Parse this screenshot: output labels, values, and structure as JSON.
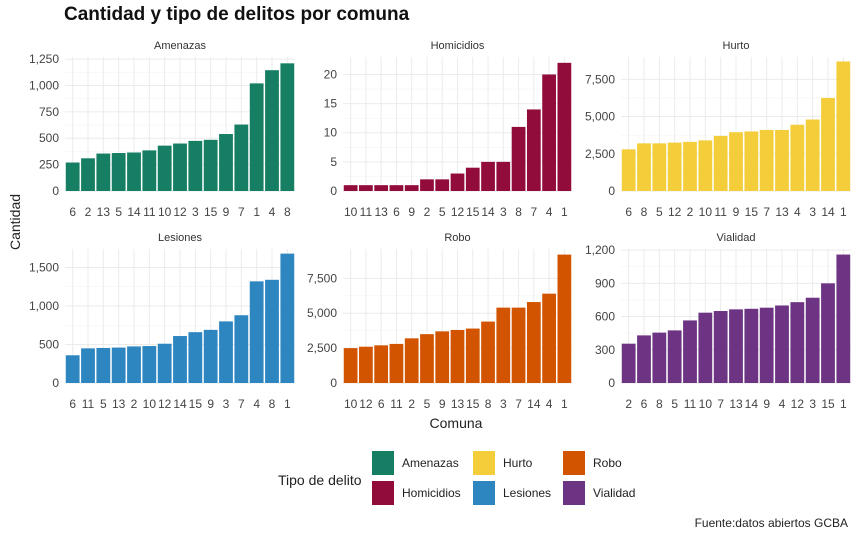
{
  "title": "Cantidad y tipo de delitos por comuna",
  "source": "Fuente:datos abiertos GCBA",
  "xlabel": "Comuna",
  "ylabel": "Cantidad",
  "legend": {
    "title": "Tipo de delito",
    "items": [
      {
        "label": "Amenazas",
        "color": "#157e63"
      },
      {
        "label": "Homicidios",
        "color": "#920c3b"
      },
      {
        "label": "Hurto",
        "color": "#f4cd3a"
      },
      {
        "label": "Lesiones",
        "color": "#2e86c1"
      },
      {
        "label": "Robo",
        "color": "#d35400"
      },
      {
        "label": "Vialidad",
        "color": "#6c3483"
      }
    ]
  },
  "chart_data": [
    {
      "type": "bar",
      "title": "Amenazas",
      "color": "#157e63",
      "categories": [
        "6",
        "2",
        "13",
        "5",
        "14",
        "11",
        "10",
        "12",
        "3",
        "15",
        "9",
        "7",
        "1",
        "4",
        "8"
      ],
      "values": [
        270,
        310,
        355,
        360,
        365,
        385,
        430,
        450,
        475,
        485,
        540,
        630,
        1020,
        1145,
        1210
      ],
      "ylim": [
        0,
        1270
      ],
      "yticks": [
        0,
        250,
        500,
        750,
        1000,
        1250
      ],
      "ytick_labels": [
        "0",
        "250",
        "500",
        "750",
        "1,000",
        "1,250"
      ]
    },
    {
      "type": "bar",
      "title": "Homicidios",
      "color": "#920c3b",
      "categories": [
        "10",
        "11",
        "13",
        "6",
        "9",
        "2",
        "5",
        "12",
        "15",
        "14",
        "3",
        "8",
        "7",
        "4",
        "1"
      ],
      "values": [
        1,
        1,
        1,
        1,
        1,
        2,
        2,
        3,
        4,
        5,
        5,
        11,
        14,
        20,
        22
      ],
      "ylim": [
        0,
        23
      ],
      "yticks": [
        0,
        5,
        10,
        15,
        20
      ],
      "ytick_labels": [
        "0",
        "5",
        "10",
        "15",
        "20"
      ]
    },
    {
      "type": "bar",
      "title": "Hurto",
      "color": "#f4cd3a",
      "categories": [
        "6",
        "8",
        "5",
        "12",
        "2",
        "10",
        "11",
        "9",
        "15",
        "7",
        "13",
        "4",
        "3",
        "14",
        "1"
      ],
      "values": [
        2800,
        3200,
        3200,
        3250,
        3300,
        3400,
        3700,
        3950,
        4000,
        4100,
        4100,
        4450,
        4800,
        6250,
        8700
      ],
      "ylim": [
        0,
        9000
      ],
      "yticks": [
        0,
        2500,
        5000,
        7500
      ],
      "ytick_labels": [
        "0",
        "2,500",
        "5,000",
        "7,500"
      ]
    },
    {
      "type": "bar",
      "title": "Lesiones",
      "color": "#2e86c1",
      "categories": [
        "6",
        "11",
        "5",
        "13",
        "2",
        "10",
        "12",
        "14",
        "15",
        "9",
        "3",
        "7",
        "4",
        "8",
        "1"
      ],
      "values": [
        360,
        450,
        455,
        460,
        475,
        480,
        510,
        610,
        660,
        690,
        800,
        880,
        1320,
        1340,
        1680
      ],
      "ylim": [
        0,
        1740
      ],
      "yticks": [
        0,
        500,
        1000,
        1500
      ],
      "ytick_labels": [
        "0",
        "500",
        "1,000",
        "1,500"
      ]
    },
    {
      "type": "bar",
      "title": "Robo",
      "color": "#d35400",
      "categories": [
        "10",
        "12",
        "6",
        "11",
        "2",
        "5",
        "9",
        "13",
        "15",
        "8",
        "3",
        "7",
        "14",
        "4",
        "1"
      ],
      "values": [
        2500,
        2600,
        2700,
        2800,
        3200,
        3500,
        3700,
        3800,
        3900,
        4400,
        5400,
        5400,
        5800,
        6400,
        9200
      ],
      "ylim": [
        0,
        9600
      ],
      "yticks": [
        0,
        2500,
        5000,
        7500
      ],
      "ytick_labels": [
        "0",
        "2,500",
        "5,000",
        "7,500"
      ]
    },
    {
      "type": "bar",
      "title": "Vialidad",
      "color": "#6c3483",
      "categories": [
        "2",
        "6",
        "8",
        "5",
        "11",
        "10",
        "7",
        "13",
        "14",
        "9",
        "4",
        "12",
        "3",
        "15",
        "1"
      ],
      "values": [
        355,
        430,
        455,
        475,
        565,
        635,
        650,
        665,
        670,
        680,
        700,
        730,
        770,
        900,
        1160
      ],
      "ylim": [
        0,
        1210
      ],
      "yticks": [
        0,
        300,
        600,
        900,
        1200
      ],
      "ytick_labels": [
        "0",
        "300",
        "600",
        "900",
        "1,200"
      ]
    }
  ]
}
